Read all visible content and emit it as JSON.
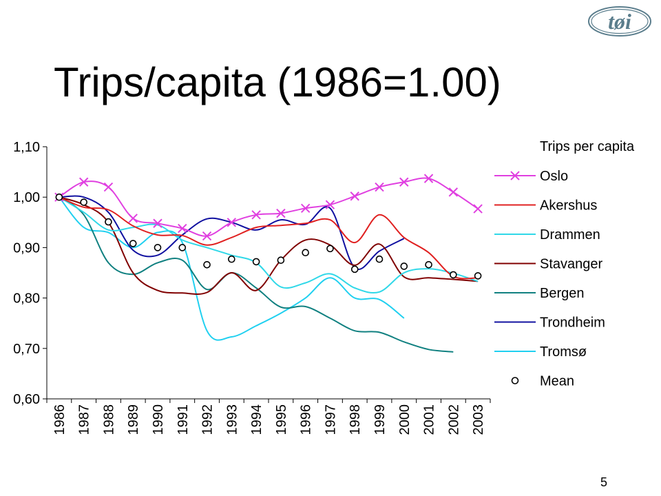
{
  "slide": {
    "title": "Trips/capita (1986=1.00)",
    "logo_text": "tøi",
    "page_number": "5"
  },
  "colors": {
    "Oslo": "#e040e0",
    "Akershus": "#e02020",
    "Drammen": "#30d8e8",
    "Stavanger": "#800000",
    "Bergen": "#108080",
    "Trondheim": "#1010a0",
    "Tromsø": "#20d0f0",
    "Mean": "#000000"
  },
  "chart_data": {
    "type": "line",
    "legend_title": "Trips per capita",
    "legend_position": "right",
    "x": [
      "1986",
      "1987",
      "1988",
      "1989",
      "1990",
      "1991",
      "1992",
      "1993",
      "1994",
      "1995",
      "1996",
      "1997",
      "1998",
      "1999",
      "2000",
      "2001",
      "2002",
      "2003"
    ],
    "y_ticks": [
      "0,60",
      "0,70",
      "0,80",
      "0,90",
      "1,00",
      "1,10"
    ],
    "ylim": [
      0.6,
      1.1
    ],
    "grid": false,
    "series": [
      {
        "name": "Oslo",
        "marker": "x",
        "values": [
          1.0,
          1.03,
          1.02,
          0.958,
          0.948,
          0.938,
          0.923,
          0.95,
          0.965,
          0.968,
          0.978,
          0.985,
          1.002,
          1.02,
          1.03,
          1.037,
          1.01,
          0.977
        ]
      },
      {
        "name": "Akershus",
        "marker": "none",
        "values": [
          1.0,
          0.98,
          0.975,
          0.943,
          0.925,
          0.924,
          0.905,
          0.92,
          0.94,
          0.944,
          0.948,
          0.955,
          0.91,
          0.965,
          0.92,
          0.89,
          0.843,
          0.84
        ]
      },
      {
        "name": "Drammen",
        "marker": "none",
        "values": [
          1.0,
          0.97,
          0.935,
          0.94,
          0.945,
          0.915,
          0.9,
          0.885,
          0.87,
          0.822,
          0.83,
          0.848,
          0.82,
          0.812,
          0.85,
          0.858,
          0.849,
          0.833
        ]
      },
      {
        "name": "Stavanger",
        "marker": "none",
        "values": [
          1.0,
          0.985,
          0.95,
          0.85,
          0.815,
          0.81,
          0.811,
          0.85,
          0.815,
          0.875,
          0.915,
          0.905,
          0.865,
          0.907,
          0.842,
          0.84,
          0.837,
          0.833
        ]
      },
      {
        "name": "Bergen",
        "marker": "none",
        "values": [
          1.0,
          0.965,
          0.87,
          0.847,
          0.87,
          0.875,
          0.817,
          0.85,
          0.82,
          0.782,
          0.783,
          0.76,
          0.735,
          0.732,
          0.713,
          0.698,
          0.693,
          null
        ]
      },
      {
        "name": "Trondheim",
        "marker": "none",
        "values": [
          1.0,
          1.0,
          0.97,
          0.895,
          0.885,
          0.925,
          0.957,
          0.95,
          0.935,
          0.955,
          0.946,
          0.978,
          0.86,
          0.893,
          0.918,
          null,
          null,
          null
        ]
      },
      {
        "name": "Tromsø",
        "marker": "none",
        "values": [
          1.0,
          0.94,
          0.93,
          0.9,
          0.93,
          0.91,
          0.735,
          0.723,
          0.745,
          0.77,
          0.8,
          0.84,
          0.8,
          0.797,
          0.76,
          null,
          null,
          null
        ]
      },
      {
        "name": "Mean",
        "marker": "circle",
        "line": false,
        "values": [
          1.0,
          0.99,
          0.951,
          0.908,
          0.9,
          0.9,
          0.866,
          0.877,
          0.872,
          0.875,
          0.89,
          0.898,
          0.857,
          0.877,
          0.863,
          0.866,
          0.846,
          0.844
        ]
      }
    ]
  }
}
